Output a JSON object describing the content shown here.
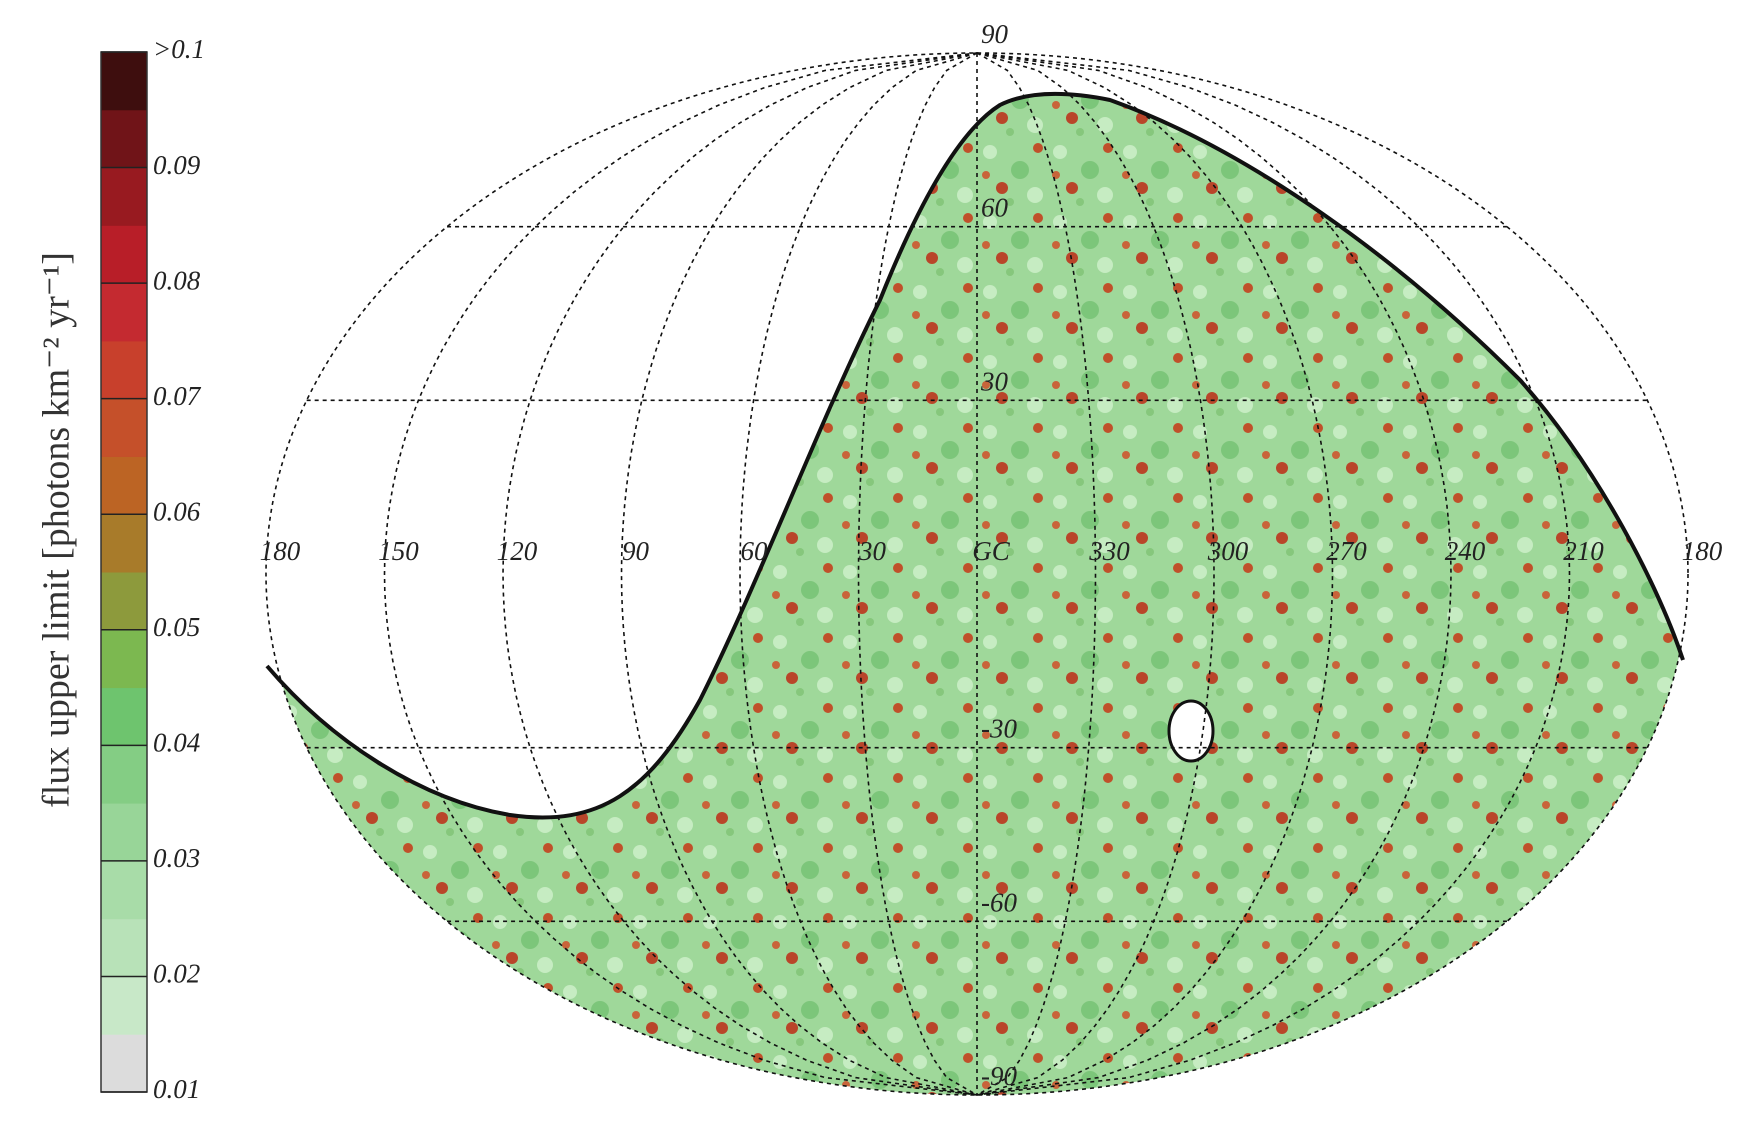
{
  "chart_data": {
    "type": "skymap",
    "colorbar": {
      "label": "flux upper limit [photons km⁻² yr⁻¹]",
      "lim": [
        0.01,
        0.1
      ],
      "ticks": [
        0.01,
        0.02,
        0.03,
        0.04,
        0.05,
        0.06,
        0.07,
        0.08,
        0.09,
        {
          "value": 0.1,
          "label": ">0.1"
        }
      ],
      "colors": [
        "#dcdcdc",
        "#c8e8c8",
        "#b8e2b8",
        "#a8dca8",
        "#98d598",
        "#84cd84",
        "#6ec46e",
        "#7cb850",
        "#8d9a3c",
        "#a87b2a",
        "#bc6424",
        "#c5502a",
        "#c8402c",
        "#c42a30",
        "#b81e28",
        "#981a20",
        "#701418",
        "#3e0e0e"
      ]
    },
    "lon_ticks": [
      180,
      150,
      120,
      90,
      60,
      30,
      {
        "value": 0,
        "label": "GC"
      },
      330,
      300,
      270,
      240,
      210,
      180
    ],
    "lat_ticks": [
      90,
      60,
      30,
      -30,
      -60,
      -90
    ]
  }
}
